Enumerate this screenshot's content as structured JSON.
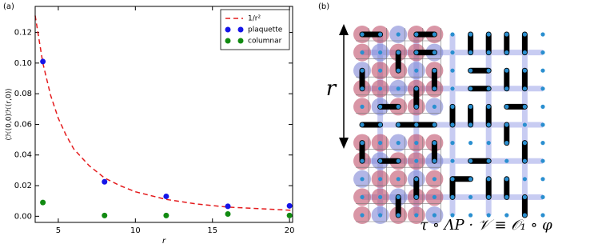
{
  "chart_data": {
    "type": "scatter",
    "label": "(a)",
    "xlabel": "r",
    "ylabel": "⟨ℋ(0,0)ℋ(r,0)⟩",
    "xlim": [
      3.5,
      20.2
    ],
    "ylim": [
      -0.004,
      0.137
    ],
    "xticks": [
      5,
      10,
      15,
      20
    ],
    "yticks": [
      {
        "value": 0,
        "label": "0.00"
      },
      {
        "value": 0.02,
        "label": "0.02"
      },
      {
        "value": 0.04,
        "label": "0.04"
      },
      {
        "value": 0.06,
        "label": "0.06"
      },
      {
        "value": 0.08,
        "label": "0.08"
      },
      {
        "value": 0.1,
        "label": "0.10"
      },
      {
        "value": 0.12,
        "label": "0.12"
      }
    ],
    "legend": "upper right",
    "grid": false,
    "series": [
      {
        "name": "1/r²",
        "type": "line",
        "style": "dashed",
        "color": "#e41a1c",
        "x": [
          3.5,
          4,
          4.5,
          5,
          5.5,
          6,
          7,
          8,
          9,
          10,
          12,
          14,
          16,
          18,
          20,
          20.2
        ],
        "values": [
          0.131,
          0.1,
          0.079,
          0.064,
          0.053,
          0.044,
          0.033,
          0.025,
          0.02,
          0.016,
          0.011,
          0.008,
          0.006,
          0.005,
          0.004,
          0.004
        ]
      },
      {
        "name": "plaquette",
        "type": "scatter",
        "color": "#1515e8",
        "x": [
          4,
          8,
          12,
          16,
          20
        ],
        "values": [
          0.101,
          0.0225,
          0.013,
          0.0065,
          0.0068
        ]
      },
      {
        "name": "columnar",
        "type": "scatter",
        "color": "#118a11",
        "x": [
          4,
          8,
          12,
          16,
          20
        ],
        "values": [
          0.009,
          0.0005,
          0.0005,
          0.0015,
          0.0005
        ]
      }
    ]
  },
  "diagram": {
    "label": "(b)",
    "r_label": "r",
    "equation": "τ ∘ ΛP · 𝒱 ≡ 𝒪₁ ∘ φ"
  }
}
